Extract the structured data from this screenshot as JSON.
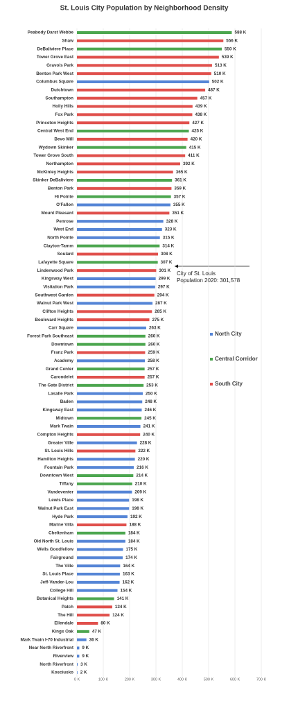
{
  "chart_data": {
    "type": "bar",
    "orientation": "horizontal",
    "title": "St. Louis City Population by Neighborhood Density",
    "categories": [
      "Peabody Darst Webbe",
      "Shaw",
      "DeBaliviere Place",
      "Tower Grove East",
      "Gravois Park",
      "Benton Park West",
      "Columbus Square",
      "Dutchtown",
      "Southampton",
      "Holly Hills",
      "Fox Park",
      "Princeton Heights",
      "Central West End",
      "Bevo Mill",
      "Wydown Skinker",
      "Tower Grove South",
      "Northampton",
      "McKinley Heights",
      "Skinker DeBaliviere",
      "Benton Park",
      "Hi Pointe",
      "O'Fallon",
      "Mount Pleasant",
      "Penrose",
      "West End",
      "North Pointe",
      "Clayton-Tamm",
      "Soulard",
      "Lafayette Square",
      "Lindenwood Park",
      "Kingsway West",
      "Visitation Park",
      "Southwest Garden",
      "Walnut Park West",
      "Clifton Heights",
      "Boulevard Heights",
      "Carr Square",
      "Forest Park Southeast",
      "Downtown",
      "Franz Park",
      "Academy",
      "Grand Center",
      "Carondelet",
      "The Gate District",
      "Lasalle Park",
      "Baden",
      "Kingsway East",
      "Midtown",
      "Mark Twain",
      "Compton Heights",
      "Greater Ville",
      "St. Louis Hills",
      "Hamilton Heights",
      "Fountain Park",
      "Downtown West",
      "Tiffany",
      "Vandeventer",
      "Lewis Place",
      "Walnut Park East",
      "Hyde Park",
      "Marine Villa",
      "Cheltenham",
      "Old North St. Louis",
      "Wells Goodfellow",
      "Fairground",
      "The Ville",
      "St. Louis Place",
      "Jeff-Vander-Lou",
      "College Hill",
      "Botanical Heights",
      "Patch",
      "The Hill",
      "Ellendale",
      "Kings Oak",
      "Mark Twain I-70 Industrial",
      "Near North Riverfront",
      "Riverview",
      "North Riverfront",
      "Kosciusko"
    ],
    "values": [
      588,
      556,
      550,
      539,
      513,
      510,
      502,
      487,
      457,
      439,
      438,
      427,
      425,
      420,
      415,
      411,
      392,
      365,
      361,
      359,
      357,
      355,
      351,
      328,
      323,
      315,
      314,
      308,
      307,
      301,
      299,
      297,
      294,
      287,
      285,
      275,
      263,
      260,
      260,
      259,
      258,
      257,
      257,
      253,
      250,
      248,
      246,
      245,
      241,
      240,
      228,
      222,
      220,
      216,
      214,
      210,
      209,
      198,
      198,
      192,
      188,
      184,
      184,
      175,
      174,
      164,
      163,
      162,
      154,
      141,
      134,
      124,
      80,
      47,
      36,
      9,
      9,
      3,
      2
    ],
    "value_labels": [
      "588 K",
      "556 K",
      "550 K",
      "539 K",
      "513 K",
      "510 K",
      "502 K",
      "487 K",
      "457 K",
      "439 K",
      "438 K",
      "427 K",
      "425 K",
      "420 K",
      "415 K",
      "411 K",
      "392 K",
      "365 K",
      "361 K",
      "359 K",
      "357 K",
      "355 K",
      "351 K",
      "328 K",
      "323 K",
      "315 K",
      "314 K",
      "308 K",
      "307 K",
      "301 K",
      "299 K",
      "297 K",
      "294 K",
      "287 K",
      "285 K",
      "275 K",
      "263 K",
      "260 K",
      "260 K",
      "259 K",
      "258 K",
      "257 K",
      "257 K",
      "253 K",
      "250 K",
      "248 K",
      "246 K",
      "245 K",
      "241 K",
      "240 K",
      "228 K",
      "222 K",
      "220 K",
      "216 K",
      "214 K",
      "210 K",
      "209 K",
      "198 K",
      "198 K",
      "192 K",
      "188 K",
      "184 K",
      "184 K",
      "175 K",
      "174 K",
      "164 K",
      "163 K",
      "162 K",
      "154 K",
      "141 K",
      "134 K",
      "124 K",
      "80 K",
      "47 K",
      "36 K",
      "9 K",
      "9 K",
      "3 K",
      "2 K"
    ],
    "colors": [
      "#4ca64f",
      "#e0504c",
      "#4ca64f",
      "#e0504c",
      "#e0504c",
      "#e0504c",
      "#5585d6",
      "#e0504c",
      "#e0504c",
      "#e0504c",
      "#e0504c",
      "#e0504c",
      "#4ca64f",
      "#e0504c",
      "#4ca64f",
      "#e0504c",
      "#e0504c",
      "#e0504c",
      "#4ca64f",
      "#e0504c",
      "#4ca64f",
      "#5585d6",
      "#e0504c",
      "#5585d6",
      "#5585d6",
      "#5585d6",
      "#4ca64f",
      "#e0504c",
      "#4ca64f",
      "#e0504c",
      "#5585d6",
      "#5585d6",
      "#e0504c",
      "#5585d6",
      "#e0504c",
      "#e0504c",
      "#5585d6",
      "#4ca64f",
      "#4ca64f",
      "#e0504c",
      "#5585d6",
      "#4ca64f",
      "#e0504c",
      "#4ca64f",
      "#5585d6",
      "#5585d6",
      "#5585d6",
      "#4ca64f",
      "#5585d6",
      "#e0504c",
      "#5585d6",
      "#e0504c",
      "#5585d6",
      "#5585d6",
      "#4ca64f",
      "#4ca64f",
      "#5585d6",
      "#5585d6",
      "#5585d6",
      "#5585d6",
      "#e0504c",
      "#4ca64f",
      "#5585d6",
      "#5585d6",
      "#5585d6",
      "#5585d6",
      "#5585d6",
      "#5585d6",
      "#5585d6",
      "#4ca64f",
      "#e0504c",
      "#e0504c",
      "#e0504c",
      "#4ca64f",
      "#5585d6",
      "#5585d6",
      "#5585d6",
      "#5585d6",
      "#5585d6"
    ],
    "legend": [
      {
        "name": "North City",
        "color": "#5585d6"
      },
      {
        "name": "Central Corridor",
        "color": "#4ca64f"
      },
      {
        "name": "South City",
        "color": "#e0504c"
      }
    ],
    "annotation": [
      "City of St. Louis",
      "Population 2020: 301,578"
    ],
    "xlim": [
      0,
      700
    ],
    "xticks": [
      {
        "value": 0,
        "label": "0 K"
      },
      {
        "value": 100,
        "label": "100 K"
      },
      {
        "value": 200,
        "label": "200 K"
      },
      {
        "value": 300,
        "label": "300 K"
      },
      {
        "value": 400,
        "label": "400 K"
      },
      {
        "value": 500,
        "label": "500 K"
      },
      {
        "value": 600,
        "label": "600 K"
      },
      {
        "value": 700,
        "label": "700 K"
      }
    ],
    "grid": true
  }
}
